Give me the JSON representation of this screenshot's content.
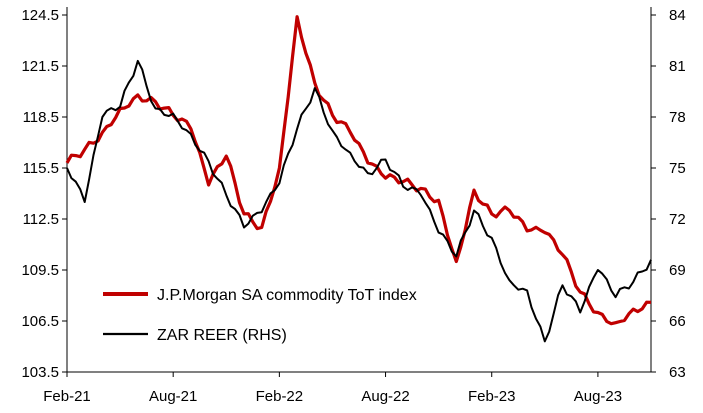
{
  "chart_data": {
    "type": "line",
    "title": "",
    "xlabel": "",
    "ylabel": "",
    "x_ticks": [
      "Feb-21",
      "Aug-21",
      "Feb-22",
      "Aug-22",
      "Feb-23",
      "Aug-23"
    ],
    "y_left_ticks": [
      "124.5",
      "121.5",
      "118.5",
      "115.5",
      "112.5",
      "109.5",
      "106.5",
      "103.5"
    ],
    "y_right_ticks": [
      "84",
      "81",
      "78",
      "75",
      "72",
      "69",
      "66",
      "63"
    ],
    "ylim_left": [
      103.5,
      124.5
    ],
    "ylim_right": [
      63,
      84
    ],
    "xlim": [
      "2021-02",
      "2023-11"
    ],
    "grid": false,
    "legend_position": "bottom-left",
    "series": [
      {
        "name": "J.P.Morgan SA commodity ToT index",
        "axis": "left",
        "color": "#c00000",
        "points": [
          [
            "2021-02",
            115.8
          ],
          [
            "2021-03",
            116.6
          ],
          [
            "2021-04",
            117.6
          ],
          [
            "2021-05",
            119.0
          ],
          [
            "2021-06",
            119.8
          ],
          [
            "2021-07",
            119.4
          ],
          [
            "2021-08",
            118.6
          ],
          [
            "2021-09",
            117.8
          ],
          [
            "2021-10",
            114.5
          ],
          [
            "2021-11",
            116.2
          ],
          [
            "2021-12",
            112.8
          ],
          [
            "2022-01",
            112.0
          ],
          [
            "2022-02",
            115.5
          ],
          [
            "2022-03",
            124.4
          ],
          [
            "2022-04",
            120.5
          ],
          [
            "2022-05",
            118.6
          ],
          [
            "2022-06",
            117.6
          ],
          [
            "2022-07",
            115.8
          ],
          [
            "2022-08",
            114.9
          ],
          [
            "2022-09",
            114.7
          ],
          [
            "2022-10",
            114.3
          ],
          [
            "2022-11",
            113.6
          ],
          [
            "2022-12",
            110.0
          ],
          [
            "2023-01",
            114.2
          ],
          [
            "2023-02",
            112.8
          ],
          [
            "2023-03",
            113.0
          ],
          [
            "2023-04",
            111.8
          ],
          [
            "2023-05",
            111.7
          ],
          [
            "2023-06",
            110.4
          ],
          [
            "2023-07",
            108.2
          ],
          [
            "2023-08",
            107.0
          ],
          [
            "2023-09",
            106.4
          ],
          [
            "2023-10",
            107.2
          ],
          [
            "2023-11",
            107.6
          ]
        ]
      },
      {
        "name": "ZAR REER (RHS)",
        "axis": "right",
        "color": "#000000",
        "points": [
          [
            "2021-02",
            75.0
          ],
          [
            "2021-03",
            73.0
          ],
          [
            "2021-04",
            78.0
          ],
          [
            "2021-05",
            78.6
          ],
          [
            "2021-06",
            81.3
          ],
          [
            "2021-07",
            78.5
          ],
          [
            "2021-08",
            78.2
          ],
          [
            "2021-09",
            77.0
          ],
          [
            "2021-10",
            75.4
          ],
          [
            "2021-11",
            73.4
          ],
          [
            "2021-12",
            71.5
          ],
          [
            "2022-01",
            72.4
          ],
          [
            "2022-02",
            74.1
          ],
          [
            "2022-03",
            77.3
          ],
          [
            "2022-04",
            79.7
          ],
          [
            "2022-05",
            77.2
          ],
          [
            "2022-06",
            75.9
          ],
          [
            "2022-07",
            74.7
          ],
          [
            "2022-08",
            75.5
          ],
          [
            "2022-09",
            73.9
          ],
          [
            "2022-10",
            73.4
          ],
          [
            "2022-11",
            71.2
          ],
          [
            "2022-12",
            69.8
          ],
          [
            "2023-01",
            72.5
          ],
          [
            "2023-02",
            70.9
          ],
          [
            "2023-03",
            68.4
          ],
          [
            "2023-04",
            67.8
          ],
          [
            "2023-05",
            64.8
          ],
          [
            "2023-06",
            68.1
          ],
          [
            "2023-07",
            66.5
          ],
          [
            "2023-08",
            69.0
          ],
          [
            "2023-09",
            67.4
          ],
          [
            "2023-10",
            68.3
          ],
          [
            "2023-11",
            69.6
          ]
        ]
      }
    ]
  }
}
